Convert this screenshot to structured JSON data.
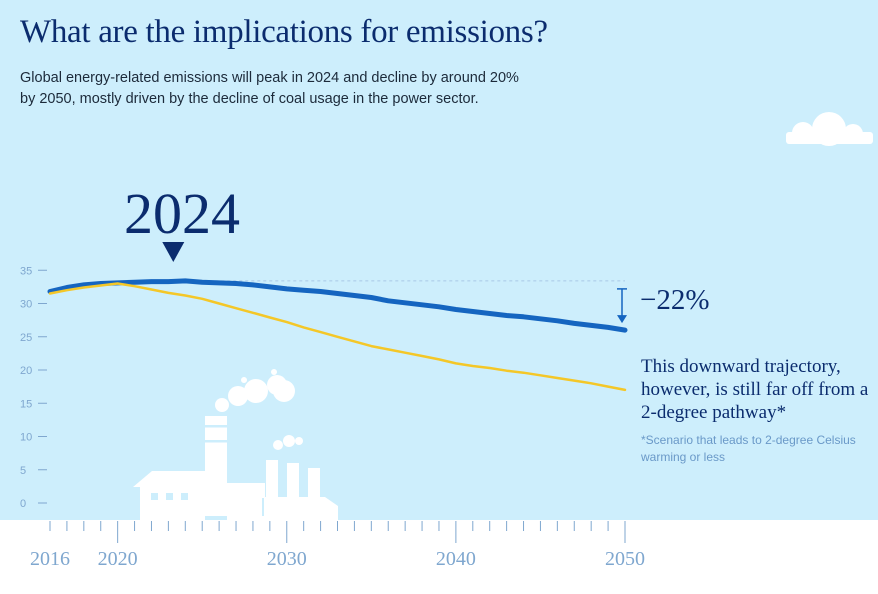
{
  "title": "What are the implications for emissions?",
  "subtitle": "Global energy-related emissions will peak in 2024 and decline by around 20% by 2050, mostly driven by the decline of coal usage in the power sector.",
  "peak_year": "2024",
  "change_label": "−22%",
  "annotation": "This downward trajectory, however, is still far off from a 2-degree pathway*",
  "footnote": "*Scenario that leads to 2-degree Celsius warming or less",
  "colors": {
    "background": "#cdeefc",
    "reference_series": "#1565c0",
    "two_degree_series": "#f4c728",
    "title": "#0b2c6e",
    "axis": "#7fa7cf"
  },
  "chart_data": {
    "type": "line",
    "xlim": [
      2016,
      2050
    ],
    "ylim": [
      0,
      35
    ],
    "yticks": [
      0,
      5,
      10,
      15,
      20,
      25,
      30,
      35
    ],
    "xtick_labels": [
      2016,
      2020,
      2030,
      2040,
      2050
    ],
    "grid": false,
    "legend": "none",
    "peak_marker": 2024,
    "series": [
      {
        "color": "#1565c0",
        "x": [
          2016,
          2017,
          2018,
          2019,
          2020,
          2021,
          2022,
          2023,
          2024,
          2025,
          2026,
          2027,
          2028,
          2029,
          2030,
          2031,
          2032,
          2033,
          2034,
          2035,
          2036,
          2037,
          2038,
          2039,
          2040,
          2041,
          2042,
          2043,
          2044,
          2045,
          2046,
          2047,
          2048,
          2049,
          2050
        ],
        "values": [
          31.8,
          32.4,
          32.8,
          33.0,
          33.1,
          33.2,
          33.3,
          33.3,
          33.4,
          33.2,
          33.1,
          33.0,
          32.8,
          32.5,
          32.2,
          32.0,
          31.8,
          31.5,
          31.2,
          30.9,
          30.4,
          30.1,
          29.8,
          29.5,
          29.1,
          28.8,
          28.5,
          28.2,
          28.0,
          27.7,
          27.4,
          27.0,
          26.7,
          26.4,
          26.0
        ]
      },
      {
        "color": "#f4c728",
        "x": [
          2016,
          2017,
          2018,
          2019,
          2020,
          2021,
          2022,
          2023,
          2024,
          2025,
          2026,
          2027,
          2028,
          2029,
          2030,
          2031,
          2032,
          2033,
          2034,
          2035,
          2036,
          2037,
          2038,
          2039,
          2040,
          2041,
          2042,
          2043,
          2044,
          2045,
          2046,
          2047,
          2048,
          2049,
          2050
        ],
        "values": [
          31.5,
          32.0,
          32.4,
          32.7,
          33.0,
          32.6,
          32.1,
          31.6,
          31.2,
          30.7,
          30.0,
          29.3,
          28.6,
          27.9,
          27.2,
          26.4,
          25.7,
          25.0,
          24.3,
          23.6,
          23.1,
          22.6,
          22.1,
          21.6,
          21.0,
          20.6,
          20.3,
          19.9,
          19.6,
          19.2,
          18.8,
          18.4,
          18.0,
          17.5,
          17.0
        ]
      }
    ]
  }
}
